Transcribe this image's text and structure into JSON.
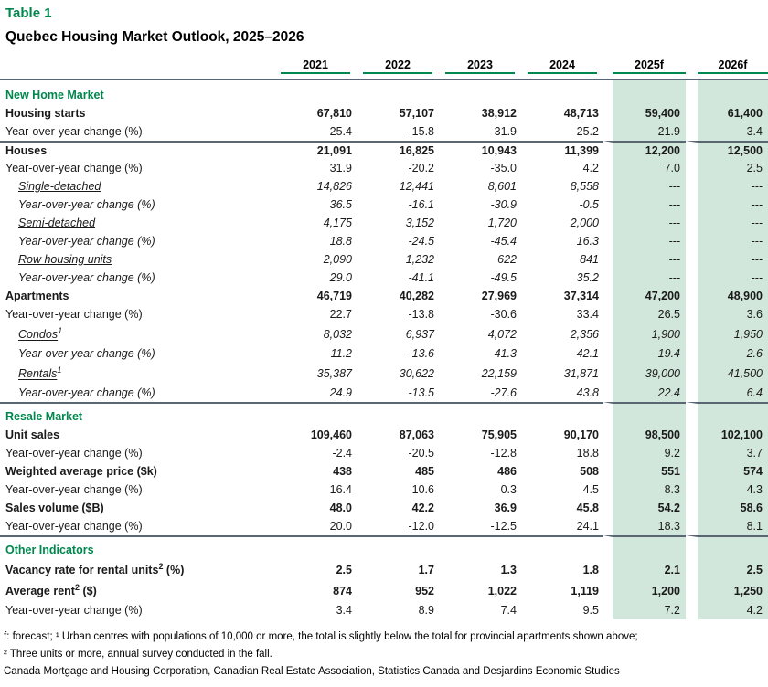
{
  "table_label": "Table 1",
  "title": "Quebec Housing Market Outlook, 2025–2026",
  "colors": {
    "accent_green": "#00874e",
    "forecast_shade": "#d2e7db",
    "rule_gray": "#5a6672"
  },
  "table": {
    "columns": [
      "2021",
      "2022",
      "2023",
      "2024",
      "2025f",
      "2026f"
    ],
    "rows": [
      {
        "style": "section",
        "label": "New Home Market"
      },
      {
        "style": "bold",
        "label": "Housing starts",
        "values": [
          "67,810",
          "57,107",
          "38,912",
          "48,713",
          "59,400",
          "61,400"
        ]
      },
      {
        "style": "plain",
        "label": "Year-over-year change (%)",
        "values": [
          "25.4",
          "-15.8",
          "-31.9",
          "25.2",
          "21.9",
          "3.4"
        ]
      },
      {
        "style": "bold",
        "rule": true,
        "label": "Houses",
        "values": [
          "21,091",
          "16,825",
          "10,943",
          "11,399",
          "12,200",
          "12,500"
        ]
      },
      {
        "style": "plain",
        "label": "Year-over-year change (%)",
        "values": [
          "31.9",
          "-20.2",
          "-35.0",
          "4.2",
          "7.0",
          "2.5"
        ]
      },
      {
        "style": "sub",
        "label": "Single-detached",
        "values": [
          "14,826",
          "12,441",
          "8,601",
          "8,558",
          "---",
          "---"
        ]
      },
      {
        "style": "subplain",
        "label": "Year-over-year change (%)",
        "values": [
          "36.5",
          "-16.1",
          "-30.9",
          "-0.5",
          "---",
          "---"
        ]
      },
      {
        "style": "sub",
        "label": "Semi-detached",
        "values": [
          "4,175",
          "3,152",
          "1,720",
          "2,000",
          "---",
          "---"
        ]
      },
      {
        "style": "subplain",
        "label": "Year-over-year change (%)",
        "values": [
          "18.8",
          "-24.5",
          "-45.4",
          "16.3",
          "---",
          "---"
        ]
      },
      {
        "style": "sub",
        "label": "Row housing units",
        "values": [
          "2,090",
          "1,232",
          "622",
          "841",
          "---",
          "---"
        ]
      },
      {
        "style": "subplain",
        "label": "Year-over-year change (%)",
        "values": [
          "29.0",
          "-41.1",
          "-49.5",
          "35.2",
          "---",
          "---"
        ]
      },
      {
        "style": "bold",
        "label": "Apartments",
        "values": [
          "46,719",
          "40,282",
          "27,969",
          "37,314",
          "47,200",
          "48,900"
        ]
      },
      {
        "style": "plain",
        "label": "Year-over-year change (%)",
        "values": [
          "22.7",
          "-13.8",
          "-30.6",
          "33.4",
          "26.5",
          "3.6"
        ]
      },
      {
        "style": "sub",
        "label": "Condos",
        "sup": "1",
        "values": [
          "8,032",
          "6,937",
          "4,072",
          "2,356",
          "1,900",
          "1,950"
        ]
      },
      {
        "style": "subplain",
        "label": "Year-over-year change (%)",
        "values": [
          "11.2",
          "-13.6",
          "-41.3",
          "-42.1",
          "-19.4",
          "2.6"
        ]
      },
      {
        "style": "sub",
        "label": "Rentals",
        "sup": "1",
        "values": [
          "35,387",
          "30,622",
          "22,159",
          "31,871",
          "39,000",
          "41,500"
        ]
      },
      {
        "style": "subplain",
        "label": "Year-over-year change (%)",
        "values": [
          "24.9",
          "-13.5",
          "-27.6",
          "43.8",
          "22.4",
          "6.4"
        ]
      },
      {
        "style": "section",
        "rule": true,
        "label": "Resale Market"
      },
      {
        "style": "bold",
        "label": "Unit sales",
        "values": [
          "109,460",
          "87,063",
          "75,905",
          "90,170",
          "98,500",
          "102,100"
        ]
      },
      {
        "style": "plain",
        "label": "Year-over-year change (%)",
        "values": [
          "-2.4",
          "-20.5",
          "-12.8",
          "18.8",
          "9.2",
          "3.7"
        ]
      },
      {
        "style": "bold",
        "label": "Weighted average price ($k)",
        "values": [
          "438",
          "485",
          "486",
          "508",
          "551",
          "574"
        ]
      },
      {
        "style": "plain",
        "label": "Year-over-year change (%)",
        "values": [
          "16.4",
          "10.6",
          "0.3",
          "4.5",
          "8.3",
          "4.3"
        ]
      },
      {
        "style": "bold",
        "label": "Sales volume ($B)",
        "values": [
          "48.0",
          "42.2",
          "36.9",
          "45.8",
          "54.2",
          "58.6"
        ]
      },
      {
        "style": "plain",
        "label": "Year-over-year change (%)",
        "values": [
          "20.0",
          "-12.0",
          "-12.5",
          "24.1",
          "18.3",
          "8.1"
        ]
      },
      {
        "style": "section",
        "rule": true,
        "label": "Other Indicators"
      },
      {
        "style": "bold",
        "label": "Vacancy rate for rental units",
        "sup": "2",
        "suffix": " (%)",
        "values": [
          "2.5",
          "1.7",
          "1.3",
          "1.8",
          "2.1",
          "2.5"
        ]
      },
      {
        "style": "bold",
        "label": "Average rent",
        "sup": "2",
        "suffix": " ($)",
        "values": [
          "874",
          "952",
          "1,022",
          "1,119",
          "1,200",
          "1,250"
        ]
      },
      {
        "style": "plain",
        "label": "Year-over-year change (%)",
        "values": [
          "3.4",
          "8.9",
          "7.4",
          "9.5",
          "7.2",
          "4.2"
        ]
      }
    ]
  },
  "footnotes": [
    "f: forecast; ¹ Urban centres with populations of 10,000 or more, the total is slightly below the total for provincial apartments shown above;",
    "² Three units or more, annual survey conducted in the fall.",
    "Canada Mortgage and Housing Corporation, Canadian Real Estate Association, Statistics Canada and Desjardins Economic Studies"
  ]
}
